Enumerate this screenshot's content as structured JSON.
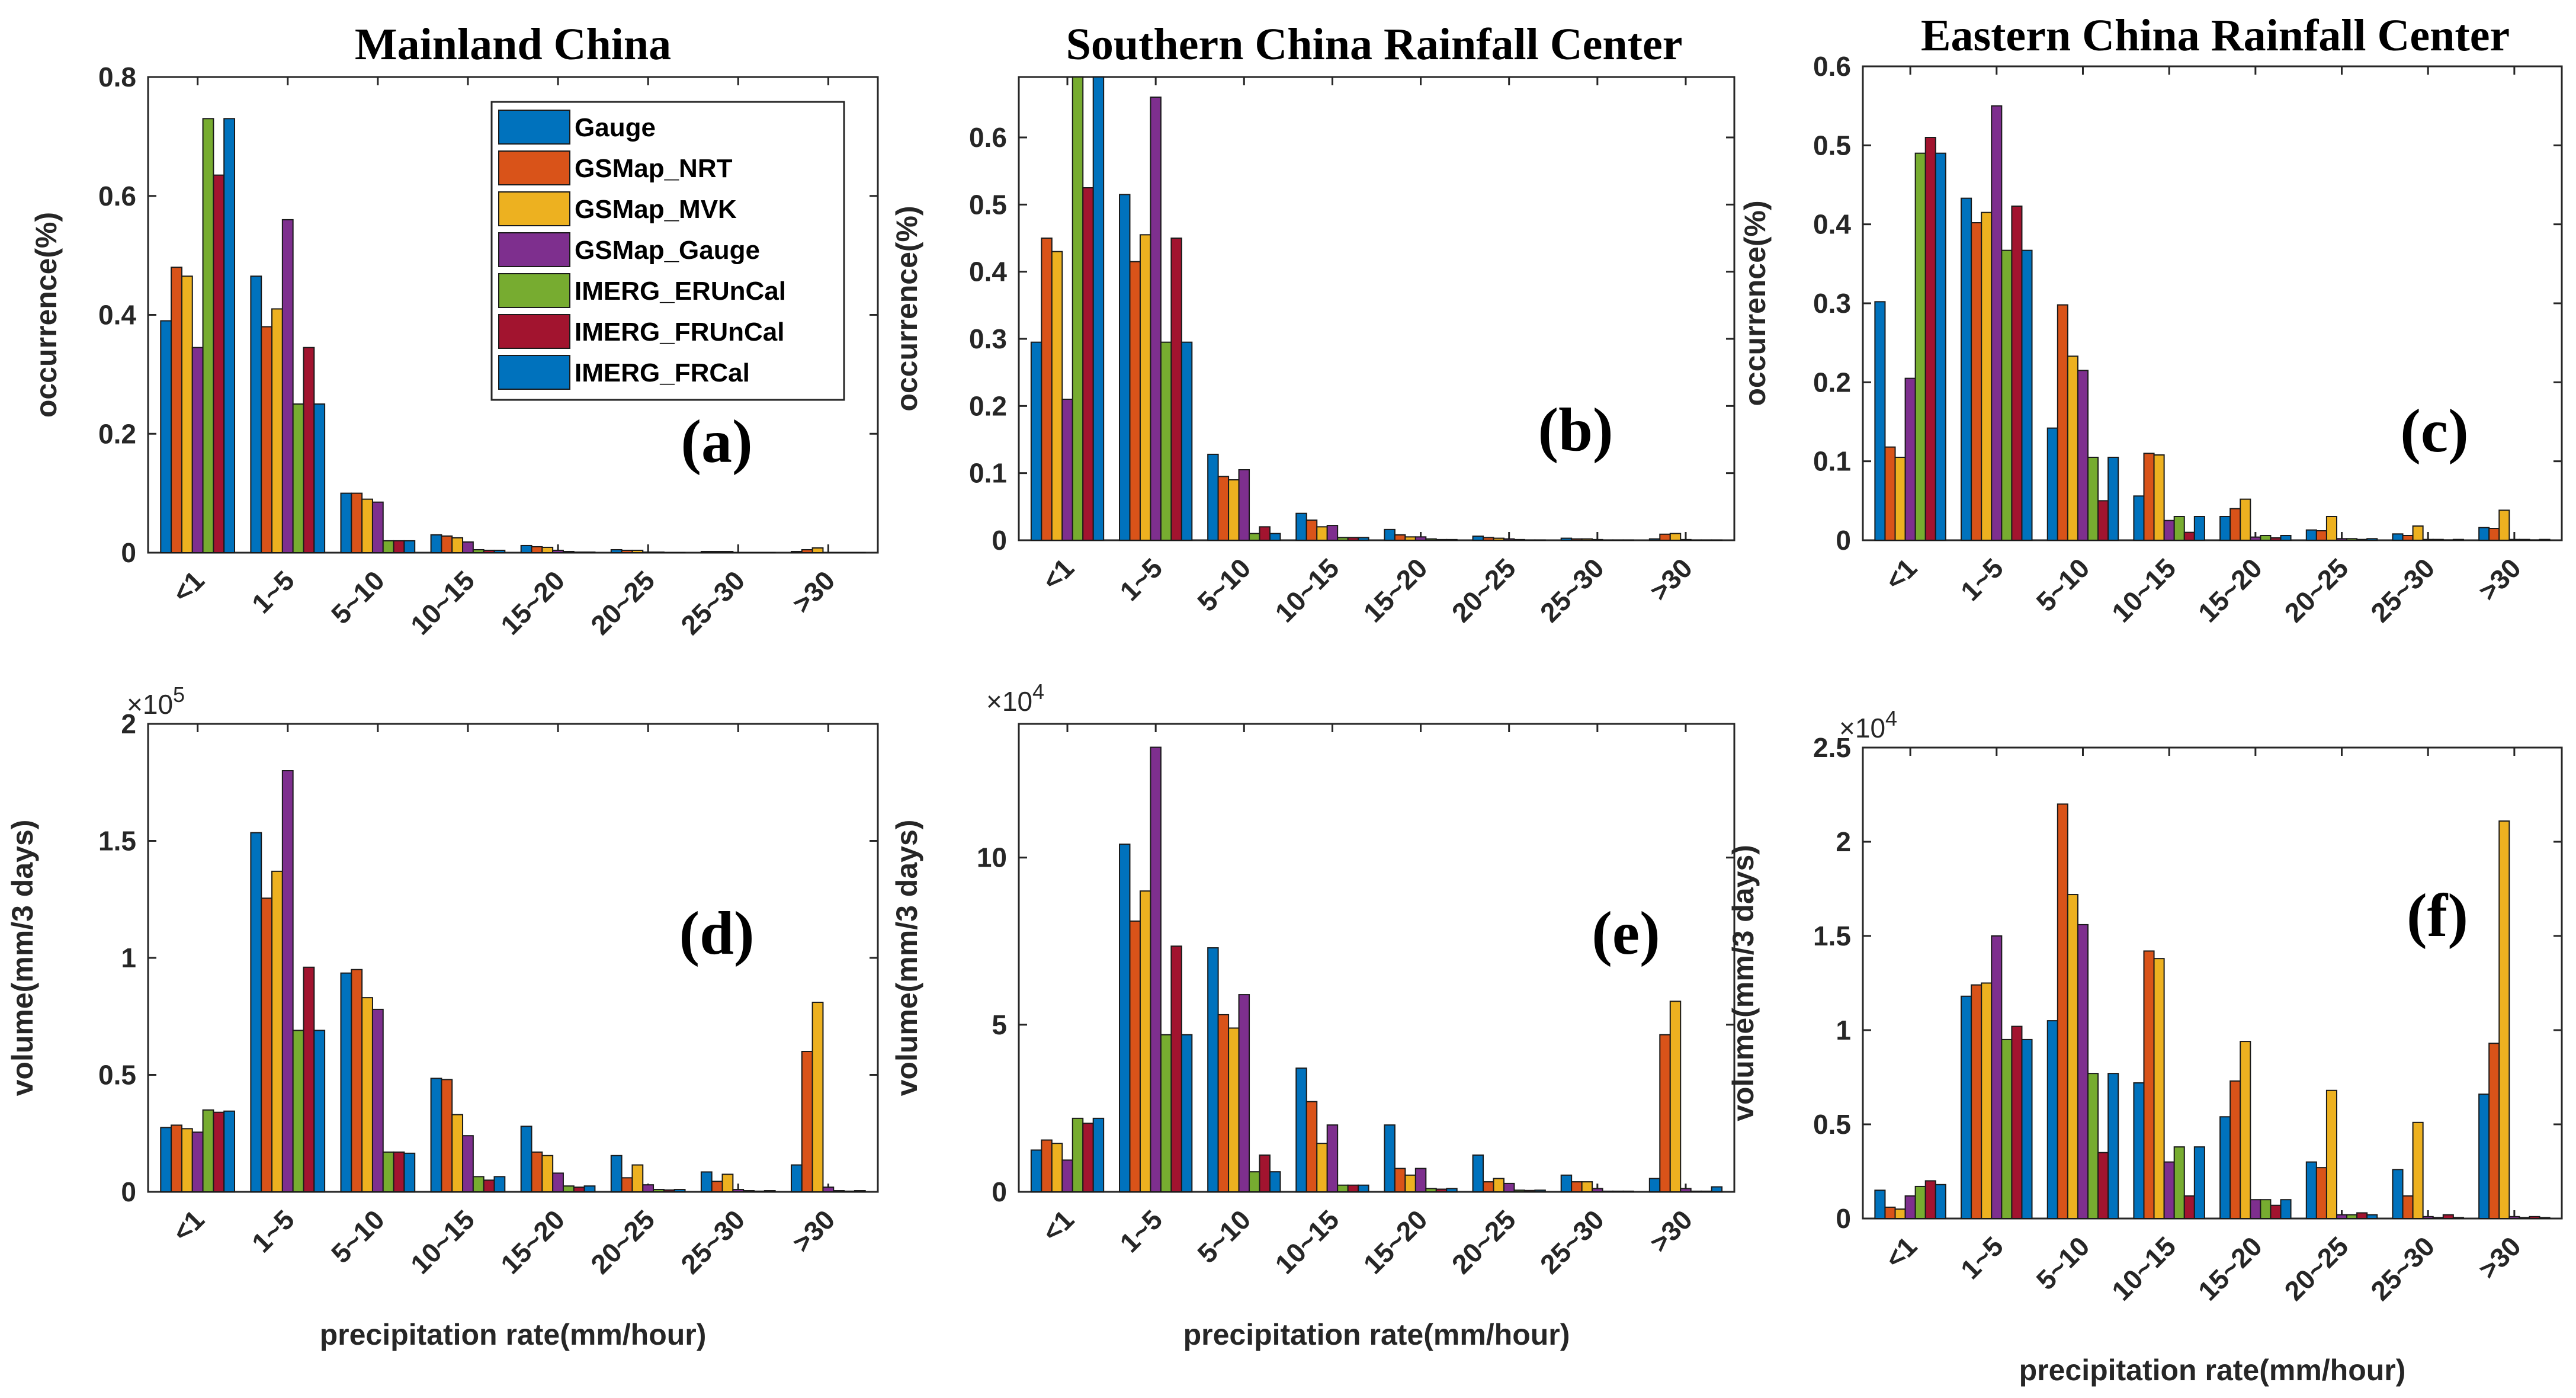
{
  "colors": {
    "Gauge": "#0072bd",
    "GSMap_NRT": "#d95319",
    "GSMap_MVK": "#edb120",
    "GSMap_Gauge": "#7e2f8e",
    "IMERG_ERUnCal": "#77ac30",
    "IMERG_FRUnCal": "#a2142f",
    "IMERG_FRCal": "#0072bd"
  },
  "legend": [
    "Gauge",
    "GSMap_NRT",
    "GSMap_MVK",
    "GSMap_Gauge",
    "IMERG_ERUnCal",
    "IMERG_FRUnCal",
    "IMERG_FRCal"
  ],
  "xlabel": "precipitation rate(mm/hour)",
  "chart_data": [
    {
      "id": "a",
      "type": "bar",
      "title": "Mainland China",
      "panel_label": "(a)",
      "categories": [
        "<1",
        "1~5",
        "5~10",
        "10~15",
        "15~20",
        "20~25",
        "25~30",
        ">30"
      ],
      "ylabel": "occurrence(%)",
      "ylim": [
        0,
        0.8
      ],
      "yticks": [
        0,
        0.2,
        0.4,
        0.6,
        0.8
      ],
      "ytick_labels": [
        "0",
        "0.2",
        "0.4",
        "0.6",
        "0.8"
      ],
      "exponent": "",
      "series": [
        {
          "name": "Gauge",
          "values": [
            0.39,
            0.465,
            0.1,
            0.03,
            0.012,
            0.005,
            0.002,
            0.002
          ]
        },
        {
          "name": "GSMap_NRT",
          "values": [
            0.48,
            0.38,
            0.1,
            0.028,
            0.01,
            0.004,
            0.002,
            0.005
          ]
        },
        {
          "name": "GSMap_MVK",
          "values": [
            0.465,
            0.41,
            0.09,
            0.025,
            0.009,
            0.004,
            0.002,
            0.008
          ]
        },
        {
          "name": "GSMap_Gauge",
          "values": [
            0.345,
            0.56,
            0.085,
            0.018,
            0.004,
            0.001,
            0.0005,
            0.0005
          ]
        },
        {
          "name": "IMERG_ERUnCal",
          "values": [
            0.73,
            0.25,
            0.02,
            0.005,
            0.002,
            0.001,
            0.0005,
            0.0005
          ]
        },
        {
          "name": "IMERG_FRUnCal",
          "values": [
            0.635,
            0.345,
            0.02,
            0.004,
            0.001,
            0.0005,
            0.0005,
            0.0005
          ]
        },
        {
          "name": "IMERG_FRCal",
          "values": [
            0.73,
            0.25,
            0.02,
            0.004,
            0.001,
            0.0005,
            0.0005,
            0.0005
          ]
        }
      ]
    },
    {
      "id": "b",
      "type": "bar",
      "title": "Southern China Rainfall Center",
      "panel_label": "(b)",
      "categories": [
        "<1",
        "1~5",
        "5~10",
        "10~15",
        "15~20",
        "20~25",
        "25~30",
        ">30"
      ],
      "ylabel": "occurrence(%)",
      "ylim": [
        0,
        0.69
      ],
      "yticks": [
        0,
        0.1,
        0.2,
        0.3,
        0.4,
        0.5,
        0.6
      ],
      "ytick_labels": [
        "0",
        "0.1",
        "0.2",
        "0.3",
        "0.4",
        "0.5",
        "0.6"
      ],
      "exponent": "",
      "series": [
        {
          "name": "Gauge",
          "values": [
            0.295,
            0.515,
            0.128,
            0.04,
            0.016,
            0.006,
            0.003,
            0.002
          ]
        },
        {
          "name": "GSMap_NRT",
          "values": [
            0.45,
            0.415,
            0.095,
            0.03,
            0.008,
            0.004,
            0.002,
            0.009
          ]
        },
        {
          "name": "GSMap_MVK",
          "values": [
            0.43,
            0.455,
            0.09,
            0.02,
            0.005,
            0.003,
            0.002,
            0.01
          ]
        },
        {
          "name": "GSMap_Gauge",
          "values": [
            0.21,
            0.66,
            0.105,
            0.022,
            0.005,
            0.002,
            0.001,
            0.001
          ]
        },
        {
          "name": "IMERG_ERUnCal",
          "values": [
            0.69,
            0.295,
            0.01,
            0.004,
            0.002,
            0.001,
            0.0005,
            0.0005
          ]
        },
        {
          "name": "IMERG_FRUnCal",
          "values": [
            0.525,
            0.45,
            0.02,
            0.004,
            0.001,
            0.0005,
            0.0005,
            0.0005
          ]
        },
        {
          "name": "IMERG_FRCal",
          "values": [
            0.69,
            0.295,
            0.01,
            0.004,
            0.001,
            0.0005,
            0.0005,
            0.0005
          ]
        }
      ]
    },
    {
      "id": "c",
      "type": "bar",
      "title": "Eastern China Rainfall Center",
      "panel_label": "(c)",
      "categories": [
        "<1",
        "1~5",
        "5~10",
        "10~15",
        "15~20",
        "20~25",
        "25~30",
        ">30"
      ],
      "ylabel": "occurrence(%)",
      "ylim": [
        0,
        0.6
      ],
      "yticks": [
        0,
        0.1,
        0.2,
        0.3,
        0.4,
        0.5,
        0.6
      ],
      "ytick_labels": [
        "0",
        "0.1",
        "0.2",
        "0.3",
        "0.4",
        "0.5",
        "0.6"
      ],
      "exponent": "",
      "series": [
        {
          "name": "Gauge",
          "values": [
            0.302,
            0.433,
            0.142,
            0.056,
            0.03,
            0.013,
            0.008,
            0.016
          ]
        },
        {
          "name": "GSMap_NRT",
          "values": [
            0.118,
            0.402,
            0.298,
            0.11,
            0.04,
            0.012,
            0.006,
            0.015
          ]
        },
        {
          "name": "GSMap_MVK",
          "values": [
            0.105,
            0.415,
            0.233,
            0.108,
            0.052,
            0.03,
            0.018,
            0.038
          ]
        },
        {
          "name": "GSMap_Gauge",
          "values": [
            0.205,
            0.55,
            0.215,
            0.025,
            0.004,
            0.002,
            0.001,
            0.001
          ]
        },
        {
          "name": "IMERG_ERUnCal",
          "values": [
            0.49,
            0.367,
            0.105,
            0.03,
            0.006,
            0.002,
            0.001,
            0.001
          ]
        },
        {
          "name": "IMERG_FRUnCal",
          "values": [
            0.51,
            0.423,
            0.05,
            0.01,
            0.003,
            0.001,
            0.0005,
            0.0005
          ]
        },
        {
          "name": "IMERG_FRCal",
          "values": [
            0.49,
            0.367,
            0.105,
            0.03,
            0.006,
            0.002,
            0.001,
            0.001
          ]
        }
      ]
    },
    {
      "id": "d",
      "type": "bar",
      "title": "",
      "panel_label": "(d)",
      "categories": [
        "<1",
        "1~5",
        "5~10",
        "10~15",
        "15~20",
        "20~25",
        "25~30",
        ">30"
      ],
      "ylabel": "volume(mm/3 days)",
      "ylim": [
        0,
        2
      ],
      "yticks": [
        0,
        0.5,
        1,
        1.5,
        2
      ],
      "ytick_labels": [
        "0",
        "0.5",
        "1",
        "1.5",
        "2"
      ],
      "exponent": "5",
      "series": [
        {
          "name": "Gauge",
          "values": [
            0.275,
            1.535,
            0.935,
            0.485,
            0.28,
            0.155,
            0.085,
            0.115
          ]
        },
        {
          "name": "GSMap_NRT",
          "values": [
            0.285,
            1.255,
            0.95,
            0.48,
            0.17,
            0.06,
            0.045,
            0.6
          ]
        },
        {
          "name": "GSMap_MVK",
          "values": [
            0.27,
            1.37,
            0.83,
            0.33,
            0.155,
            0.115,
            0.075,
            0.81
          ]
        },
        {
          "name": "GSMap_Gauge",
          "values": [
            0.255,
            1.8,
            0.78,
            0.24,
            0.08,
            0.03,
            0.01,
            0.02
          ]
        },
        {
          "name": "IMERG_ERUnCal",
          "values": [
            0.35,
            0.69,
            0.17,
            0.065,
            0.025,
            0.01,
            0.005,
            0.005
          ]
        },
        {
          "name": "IMERG_FRUnCal",
          "values": [
            0.34,
            0.96,
            0.17,
            0.05,
            0.02,
            0.008,
            0.003,
            0.003
          ]
        },
        {
          "name": "IMERG_FRCal",
          "values": [
            0.345,
            0.69,
            0.165,
            0.065,
            0.025,
            0.01,
            0.005,
            0.005
          ]
        }
      ]
    },
    {
      "id": "e",
      "type": "bar",
      "title": "",
      "panel_label": "(e)",
      "categories": [
        "<1",
        "1~5",
        "5~10",
        "10~15",
        "15~20",
        "20~25",
        "25~30",
        ">30"
      ],
      "ylabel": "volume(mm/3 days)",
      "ylim": [
        0,
        14
      ],
      "yticks": [
        0,
        5,
        10
      ],
      "ytick_labels": [
        "0",
        "5",
        "10"
      ],
      "exponent": "4",
      "series": [
        {
          "name": "Gauge",
          "values": [
            1.25,
            10.4,
            7.3,
            3.7,
            2.0,
            1.1,
            0.5,
            0.4
          ]
        },
        {
          "name": "GSMap_NRT",
          "values": [
            1.55,
            8.1,
            5.3,
            2.7,
            0.7,
            0.3,
            0.3,
            4.7
          ]
        },
        {
          "name": "GSMap_MVK",
          "values": [
            1.45,
            9.0,
            4.9,
            1.45,
            0.5,
            0.4,
            0.3,
            5.7
          ]
        },
        {
          "name": "GSMap_Gauge",
          "values": [
            0.95,
            13.3,
            5.9,
            2.0,
            0.7,
            0.25,
            0.1,
            0.1
          ]
        },
        {
          "name": "IMERG_ERUnCal",
          "values": [
            2.2,
            4.7,
            0.6,
            0.2,
            0.1,
            0.05,
            0.02,
            0.02
          ]
        },
        {
          "name": "IMERG_FRUnCal",
          "values": [
            2.05,
            7.35,
            1.1,
            0.2,
            0.08,
            0.04,
            0.02,
            0.02
          ]
        },
        {
          "name": "IMERG_FRCal",
          "values": [
            2.2,
            4.7,
            0.6,
            0.2,
            0.1,
            0.05,
            0.02,
            0.15
          ]
        }
      ]
    },
    {
      "id": "f",
      "type": "bar",
      "title": "",
      "panel_label": "(f)",
      "categories": [
        "<1",
        "1~5",
        "5~10",
        "10~15",
        "15~20",
        "20~25",
        "25~30",
        ">30"
      ],
      "ylabel": "volume(mm/3 days)",
      "ylim": [
        0,
        2.5
      ],
      "yticks": [
        0,
        0.5,
        1,
        1.5,
        2,
        2.5
      ],
      "ytick_labels": [
        "0",
        "0.5",
        "1",
        "1.5",
        "2",
        "2.5"
      ],
      "exponent": "4",
      "series": [
        {
          "name": "Gauge",
          "values": [
            0.15,
            1.18,
            1.05,
            0.72,
            0.54,
            0.3,
            0.26,
            0.66
          ]
        },
        {
          "name": "GSMap_NRT",
          "values": [
            0.06,
            1.24,
            2.2,
            1.42,
            0.73,
            0.27,
            0.12,
            0.93
          ]
        },
        {
          "name": "GSMap_MVK",
          "values": [
            0.05,
            1.25,
            1.72,
            1.38,
            0.94,
            0.68,
            0.51,
            2.11
          ]
        },
        {
          "name": "GSMap_Gauge",
          "values": [
            0.12,
            1.5,
            1.56,
            0.3,
            0.1,
            0.02,
            0.01,
            0.01
          ]
        },
        {
          "name": "IMERG_ERUnCal",
          "values": [
            0.17,
            0.95,
            0.77,
            0.38,
            0.1,
            0.02,
            0.005,
            0.005
          ]
        },
        {
          "name": "IMERG_FRUnCal",
          "values": [
            0.2,
            1.02,
            0.35,
            0.12,
            0.07,
            0.03,
            0.02,
            0.01
          ]
        },
        {
          "name": "IMERG_FRCal",
          "values": [
            0.18,
            0.95,
            0.77,
            0.38,
            0.1,
            0.02,
            0.005,
            0.005
          ]
        }
      ]
    }
  ]
}
